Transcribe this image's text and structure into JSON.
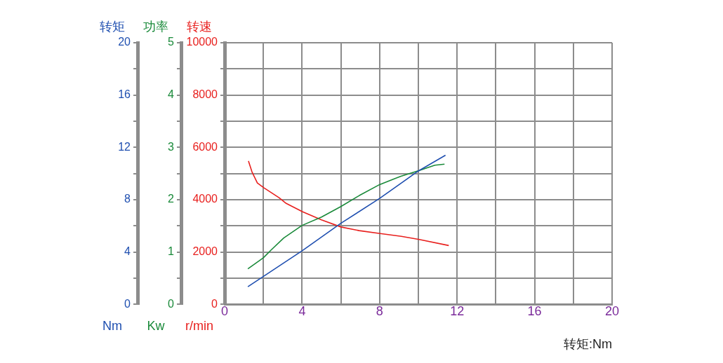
{
  "chart_data": {
    "type": "line",
    "xlabel": "转矩:Nm",
    "ylabel": "转速 r/min",
    "y2label": "功率 Kw",
    "y3label": "转矩 Nm",
    "xlim": [
      0,
      20
    ],
    "xticks": [
      0,
      {
        "value": 2,
        "label": null
      },
      4,
      {
        "value": 6,
        "label": null
      },
      8,
      {
        "value": 10,
        "label": null
      },
      12,
      {
        "value": 14,
        "label": null
      },
      16,
      {
        "value": 18,
        "label": null
      },
      20
    ],
    "ylim": [
      0,
      10000
    ],
    "yticks": [
      0,
      {
        "value": 1000,
        "label": null
      },
      2000,
      {
        "value": 3000,
        "label": null
      },
      4000,
      {
        "value": 5000,
        "label": null
      },
      6000,
      {
        "value": 7000,
        "label": null
      },
      8000,
      {
        "value": 9000,
        "label": null
      },
      10000
    ],
    "y2lim": [
      0,
      5
    ],
    "y2ticks": [
      0,
      {
        "value": 0.5,
        "label": null
      },
      1,
      {
        "value": 1.5,
        "label": null
      },
      2,
      {
        "value": 2.5,
        "label": null
      },
      3,
      {
        "value": 3.5,
        "label": null
      },
      4,
      {
        "value": 4.5,
        "label": null
      },
      5
    ],
    "y3lim": [
      0,
      20
    ],
    "y3ticks": [
      0,
      {
        "value": 2,
        "label": null
      },
      4,
      {
        "value": 6,
        "label": null
      },
      8,
      {
        "value": 10,
        "label": null
      },
      12,
      {
        "value": 14,
        "label": null
      },
      16,
      {
        "value": 18,
        "label": null
      },
      20
    ],
    "grid": true,
    "legend": false,
    "marker": "none",
    "line_style": "solid",
    "series": [
      {
        "color": "#1f4fb0",
        "axis": "y3",
        "x": [
          1.2,
          4,
          6,
          8,
          10,
          11.4
        ],
        "values": [
          1.35,
          4.1,
          6.2,
          8.1,
          10.2,
          11.4
        ]
      },
      {
        "color": "#1a8a3a",
        "axis": "y2",
        "x": [
          1.2,
          2,
          2.4,
          3.05,
          4,
          5,
          6,
          6.95,
          8,
          9.1,
          10.05,
          10.85,
          11.35
        ],
        "values": [
          0.68,
          0.89,
          1.04,
          1.27,
          1.51,
          1.67,
          1.87,
          2.08,
          2.29,
          2.45,
          2.56,
          2.66,
          2.68
        ]
      },
      {
        "color": "#e8201e",
        "axis": "y",
        "x": [
          1.23,
          1.41,
          1.69,
          2.02,
          2.81,
          3.18,
          4.03,
          5,
          6,
          6.95,
          8.03,
          9.12,
          10.05,
          11.57
        ],
        "values": [
          5480,
          5070,
          4640,
          4460,
          4080,
          3860,
          3540,
          3230,
          2960,
          2820,
          2710,
          2600,
          2480,
          2250
        ]
      }
    ]
  }
}
